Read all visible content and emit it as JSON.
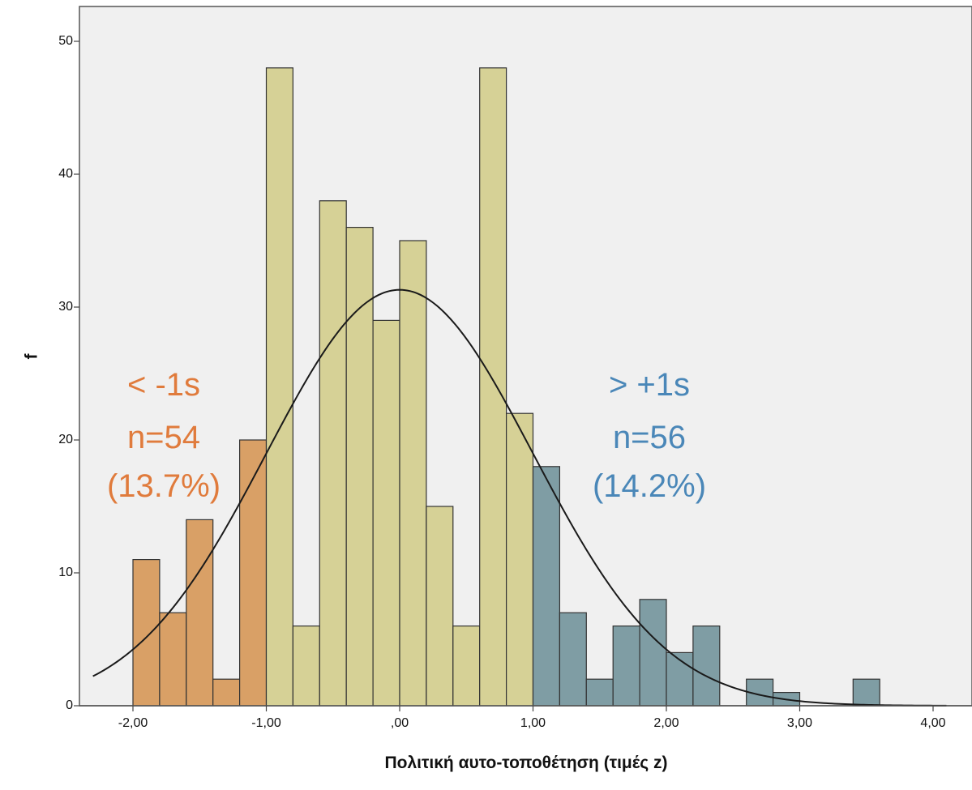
{
  "chart_data": {
    "type": "bar",
    "subtype": "histogram",
    "xlabel": "Πολιτική αυτο-τοποθέτηση (τιμές z)",
    "ylabel": "f",
    "xlim": [
      -2.3,
      4.1
    ],
    "ylim": [
      0,
      52.5
    ],
    "x_ticks": [
      {
        "value": -2,
        "label": "-2,00"
      },
      {
        "value": -1,
        "label": "-1,00"
      },
      {
        "value": 0,
        "label": ",00"
      },
      {
        "value": 1,
        "label": "1,00"
      },
      {
        "value": 2,
        "label": "2,00"
      },
      {
        "value": 3,
        "label": "3,00"
      },
      {
        "value": 4,
        "label": "4,00"
      }
    ],
    "y_ticks": [
      {
        "value": 0,
        "label": "0"
      },
      {
        "value": 10,
        "label": "10"
      },
      {
        "value": 20,
        "label": "20"
      },
      {
        "value": 30,
        "label": "30"
      },
      {
        "value": 40,
        "label": "40"
      },
      {
        "value": 50,
        "label": "50"
      }
    ],
    "bin_width": 0.2,
    "bins": [
      {
        "start": -2.0,
        "value": 11,
        "group": "low"
      },
      {
        "start": -1.8,
        "value": 7,
        "group": "low"
      },
      {
        "start": -1.6,
        "value": 14,
        "group": "low"
      },
      {
        "start": -1.4,
        "value": 2,
        "group": "low"
      },
      {
        "start": -1.2,
        "value": 20,
        "group": "low"
      },
      {
        "start": -1.0,
        "value": 48,
        "group": "mid"
      },
      {
        "start": -0.8,
        "value": 6,
        "group": "mid"
      },
      {
        "start": -0.6,
        "value": 38,
        "group": "mid"
      },
      {
        "start": -0.4,
        "value": 36,
        "group": "mid"
      },
      {
        "start": -0.2,
        "value": 29,
        "group": "mid"
      },
      {
        "start": 0.0,
        "value": 35,
        "group": "mid"
      },
      {
        "start": 0.2,
        "value": 15,
        "group": "mid"
      },
      {
        "start": 0.4,
        "value": 6,
        "group": "mid"
      },
      {
        "start": 0.6,
        "value": 48,
        "group": "mid"
      },
      {
        "start": 0.8,
        "value": 22,
        "group": "mid"
      },
      {
        "start": 1.0,
        "value": 18,
        "group": "high"
      },
      {
        "start": 1.2,
        "value": 7,
        "group": "high"
      },
      {
        "start": 1.4,
        "value": 2,
        "group": "high"
      },
      {
        "start": 1.6,
        "value": 6,
        "group": "high"
      },
      {
        "start": 1.8,
        "value": 8,
        "group": "high"
      },
      {
        "start": 2.0,
        "value": 4,
        "group": "high"
      },
      {
        "start": 2.2,
        "value": 6,
        "group": "high"
      },
      {
        "start": 2.6,
        "value": 2,
        "group": "high"
      },
      {
        "start": 2.8,
        "value": 1,
        "group": "high"
      },
      {
        "start": 3.4,
        "value": 2,
        "group": "high"
      }
    ],
    "normal_curve": {
      "mean": 0,
      "sd": 1,
      "peak": 31.3
    },
    "grid": false,
    "colors": {
      "low": "#D9A066",
      "mid": "#D6D196",
      "high": "#7F9DA4",
      "plot_background": "#F0F0F0",
      "curve": "#1a1a1a",
      "annotation_low": "#E07B3C",
      "annotation_high": "#4A87B8"
    },
    "annotations": {
      "low": {
        "line1": "< -1s",
        "line2": "n=54",
        "line3": "(13.7%)"
      },
      "high": {
        "line1": "> +1s",
        "line2": "n=56",
        "line3": "(14.2%)"
      }
    }
  }
}
